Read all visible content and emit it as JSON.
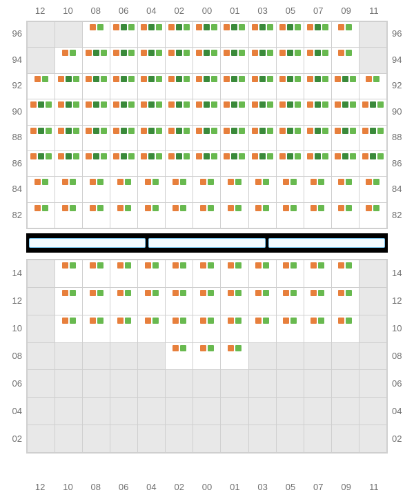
{
  "type": "seating-grid",
  "columns": [
    "12",
    "10",
    "08",
    "06",
    "04",
    "02",
    "00",
    "01",
    "03",
    "05",
    "07",
    "09",
    "11"
  ],
  "upper_rows": [
    "96",
    "94",
    "92",
    "90",
    "88",
    "86",
    "84",
    "82"
  ],
  "lower_rows": [
    "14",
    "12",
    "10",
    "08",
    "06",
    "04",
    "02"
  ],
  "colors": {
    "bg_inactive": "#e8e8e8",
    "bg_active": "#ffffff",
    "grid_line": "#cfcfcf",
    "label_text": "#707070",
    "divider_bg": "#000000",
    "divider_seg_fill": "#f4fbff",
    "divider_seg_border": "#7cc7ef",
    "orange": "#e77f3c",
    "green_dark": "#3a8a3a",
    "green_light": "#68b94f"
  },
  "legend_patterns": {
    "A": [
      "orange",
      "green_dark",
      "green_light"
    ],
    "B": [
      "orange",
      "green_light"
    ],
    "C": []
  },
  "upper_cells": [
    [
      "C",
      "C",
      "B",
      "A",
      "A",
      "A",
      "A",
      "A",
      "A",
      "A",
      "A",
      "B",
      "C"
    ],
    [
      "C",
      "B",
      "A",
      "A",
      "A",
      "A",
      "A",
      "A",
      "A",
      "A",
      "A",
      "B",
      "C"
    ],
    [
      "B",
      "A",
      "A",
      "A",
      "A",
      "A",
      "A",
      "A",
      "A",
      "A",
      "A",
      "A",
      "B"
    ],
    [
      "A",
      "A",
      "A",
      "A",
      "A",
      "A",
      "A",
      "A",
      "A",
      "A",
      "A",
      "A",
      "A"
    ],
    [
      "A",
      "A",
      "A",
      "A",
      "A",
      "A",
      "A",
      "A",
      "A",
      "A",
      "A",
      "A",
      "A"
    ],
    [
      "A",
      "A",
      "A",
      "A",
      "A",
      "A",
      "A",
      "A",
      "A",
      "A",
      "A",
      "A",
      "A"
    ],
    [
      "B",
      "B",
      "B",
      "B",
      "B",
      "B",
      "B",
      "B",
      "B",
      "B",
      "B",
      "B",
      "B"
    ],
    [
      "B",
      "B",
      "B",
      "B",
      "B",
      "B",
      "B",
      "B",
      "B",
      "B",
      "B",
      "B",
      "B"
    ]
  ],
  "lower_cells": [
    [
      "C",
      "B",
      "B",
      "B",
      "B",
      "B",
      "B",
      "B",
      "B",
      "B",
      "B",
      "B",
      "C"
    ],
    [
      "C",
      "B",
      "B",
      "B",
      "B",
      "B",
      "B",
      "B",
      "B",
      "B",
      "B",
      "B",
      "C"
    ],
    [
      "C",
      "B",
      "B",
      "B",
      "B",
      "B",
      "B",
      "B",
      "B",
      "B",
      "B",
      "B",
      "C"
    ],
    [
      "C",
      "C",
      "C",
      "C",
      "C",
      "B",
      "B",
      "B",
      "C",
      "C",
      "C",
      "C",
      "C"
    ],
    [
      "C",
      "C",
      "C",
      "C",
      "C",
      "C",
      "C",
      "C",
      "C",
      "C",
      "C",
      "C",
      "C"
    ],
    [
      "C",
      "C",
      "C",
      "C",
      "C",
      "C",
      "C",
      "C",
      "C",
      "C",
      "C",
      "C",
      "C"
    ],
    [
      "C",
      "C",
      "C",
      "C",
      "C",
      "C",
      "C",
      "C",
      "C",
      "C",
      "C",
      "C",
      "C"
    ]
  ]
}
